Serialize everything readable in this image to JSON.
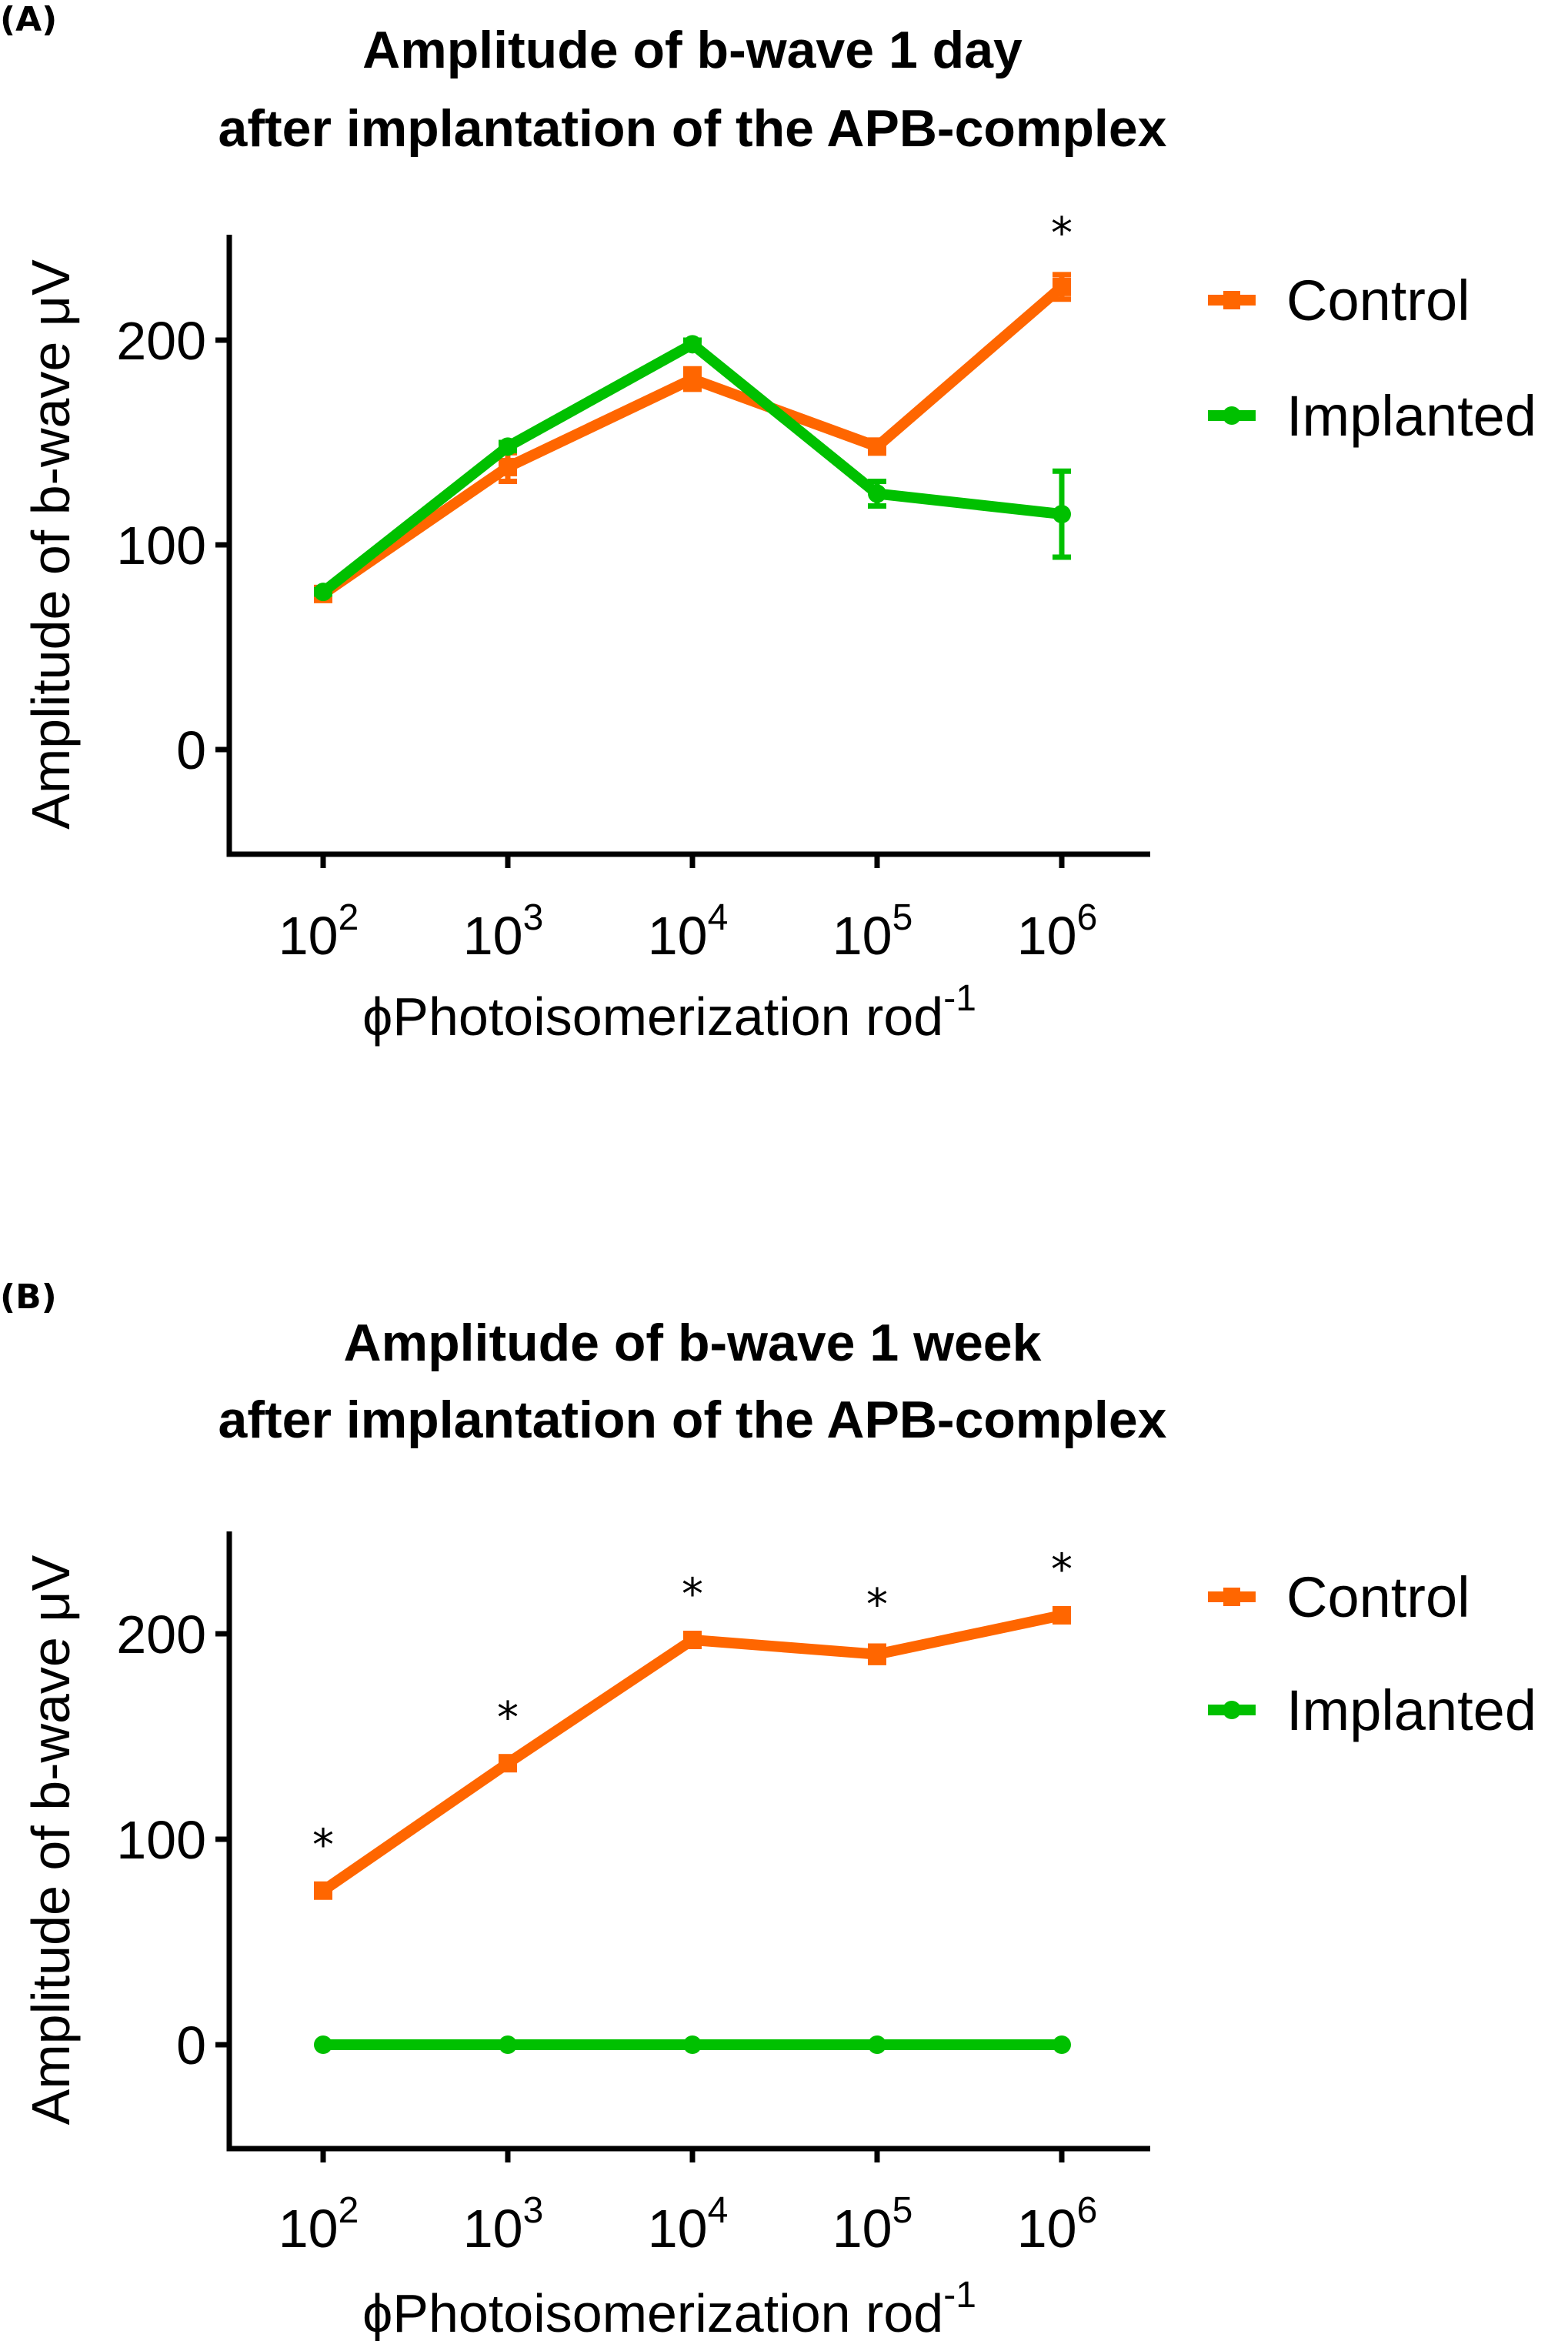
{
  "chart_data": [
    {
      "type": "line",
      "panel_label": "(A)",
      "title": [
        "Amplitude of b-wave 1 day",
        "after implantation of the APB-complex"
      ],
      "xlabel": "ϕPhotoisomerization rod",
      "xlabel_superscript": "-1",
      "ylabel": "Amplitude of b-wave μV",
      "categories": [
        {
          "base": "10",
          "exp": "2"
        },
        {
          "base": "10",
          "exp": "3"
        },
        {
          "base": "10",
          "exp": "4"
        },
        {
          "base": "10",
          "exp": "5"
        },
        {
          "base": "10",
          "exp": "6"
        }
      ],
      "x": [
        100,
        1000,
        10000,
        100000,
        1000000
      ],
      "ylim": [
        -50,
        250
      ],
      "yticks": [
        0,
        100,
        200
      ],
      "grid": false,
      "legend_position": "right",
      "series": [
        {
          "name": "Control",
          "color": "#ff6600",
          "marker": "square",
          "values": [
            76,
            138,
            181,
            148,
            226
          ],
          "errors": [
            2,
            7,
            5,
            2,
            6
          ]
        },
        {
          "name": "Implanted",
          "color": "#00c000",
          "marker": "circle",
          "values": [
            77,
            148,
            198,
            125,
            115
          ],
          "errors": [
            1,
            2,
            2,
            6,
            21
          ]
        }
      ],
      "significance": [
        {
          "index": 4,
          "label": "*"
        }
      ]
    },
    {
      "type": "line",
      "panel_label": "(B)",
      "title": [
        "Amplitude of b-wave 1 week",
        "after implantation of the APB-complex"
      ],
      "xlabel": "ϕPhotoisomerization rod",
      "xlabel_superscript": "-1",
      "ylabel": "Amplitude of b-wave μV",
      "categories": [
        {
          "base": "10",
          "exp": "2"
        },
        {
          "base": "10",
          "exp": "3"
        },
        {
          "base": "10",
          "exp": "4"
        },
        {
          "base": "10",
          "exp": "5"
        },
        {
          "base": "10",
          "exp": "6"
        }
      ],
      "x": [
        100,
        1000,
        10000,
        100000,
        1000000
      ],
      "ylim": [
        -50,
        250
      ],
      "yticks": [
        0,
        100,
        200
      ],
      "grid": false,
      "legend_position": "right",
      "series": [
        {
          "name": "Control",
          "color": "#ff6600",
          "marker": "square",
          "values": [
            75,
            137,
            197,
            190,
            209
          ],
          "errors": [
            2,
            2,
            2,
            4,
            2
          ]
        },
        {
          "name": "Implanted",
          "color": "#00c000",
          "marker": "circle",
          "values": [
            0,
            0,
            0,
            0,
            0
          ],
          "errors": [
            0,
            0,
            0,
            0,
            0
          ]
        }
      ],
      "significance": [
        {
          "index": 0,
          "label": "*"
        },
        {
          "index": 1,
          "label": "*"
        },
        {
          "index": 2,
          "label": "*"
        },
        {
          "index": 3,
          "label": "*"
        },
        {
          "index": 4,
          "label": "*"
        }
      ]
    }
  ]
}
